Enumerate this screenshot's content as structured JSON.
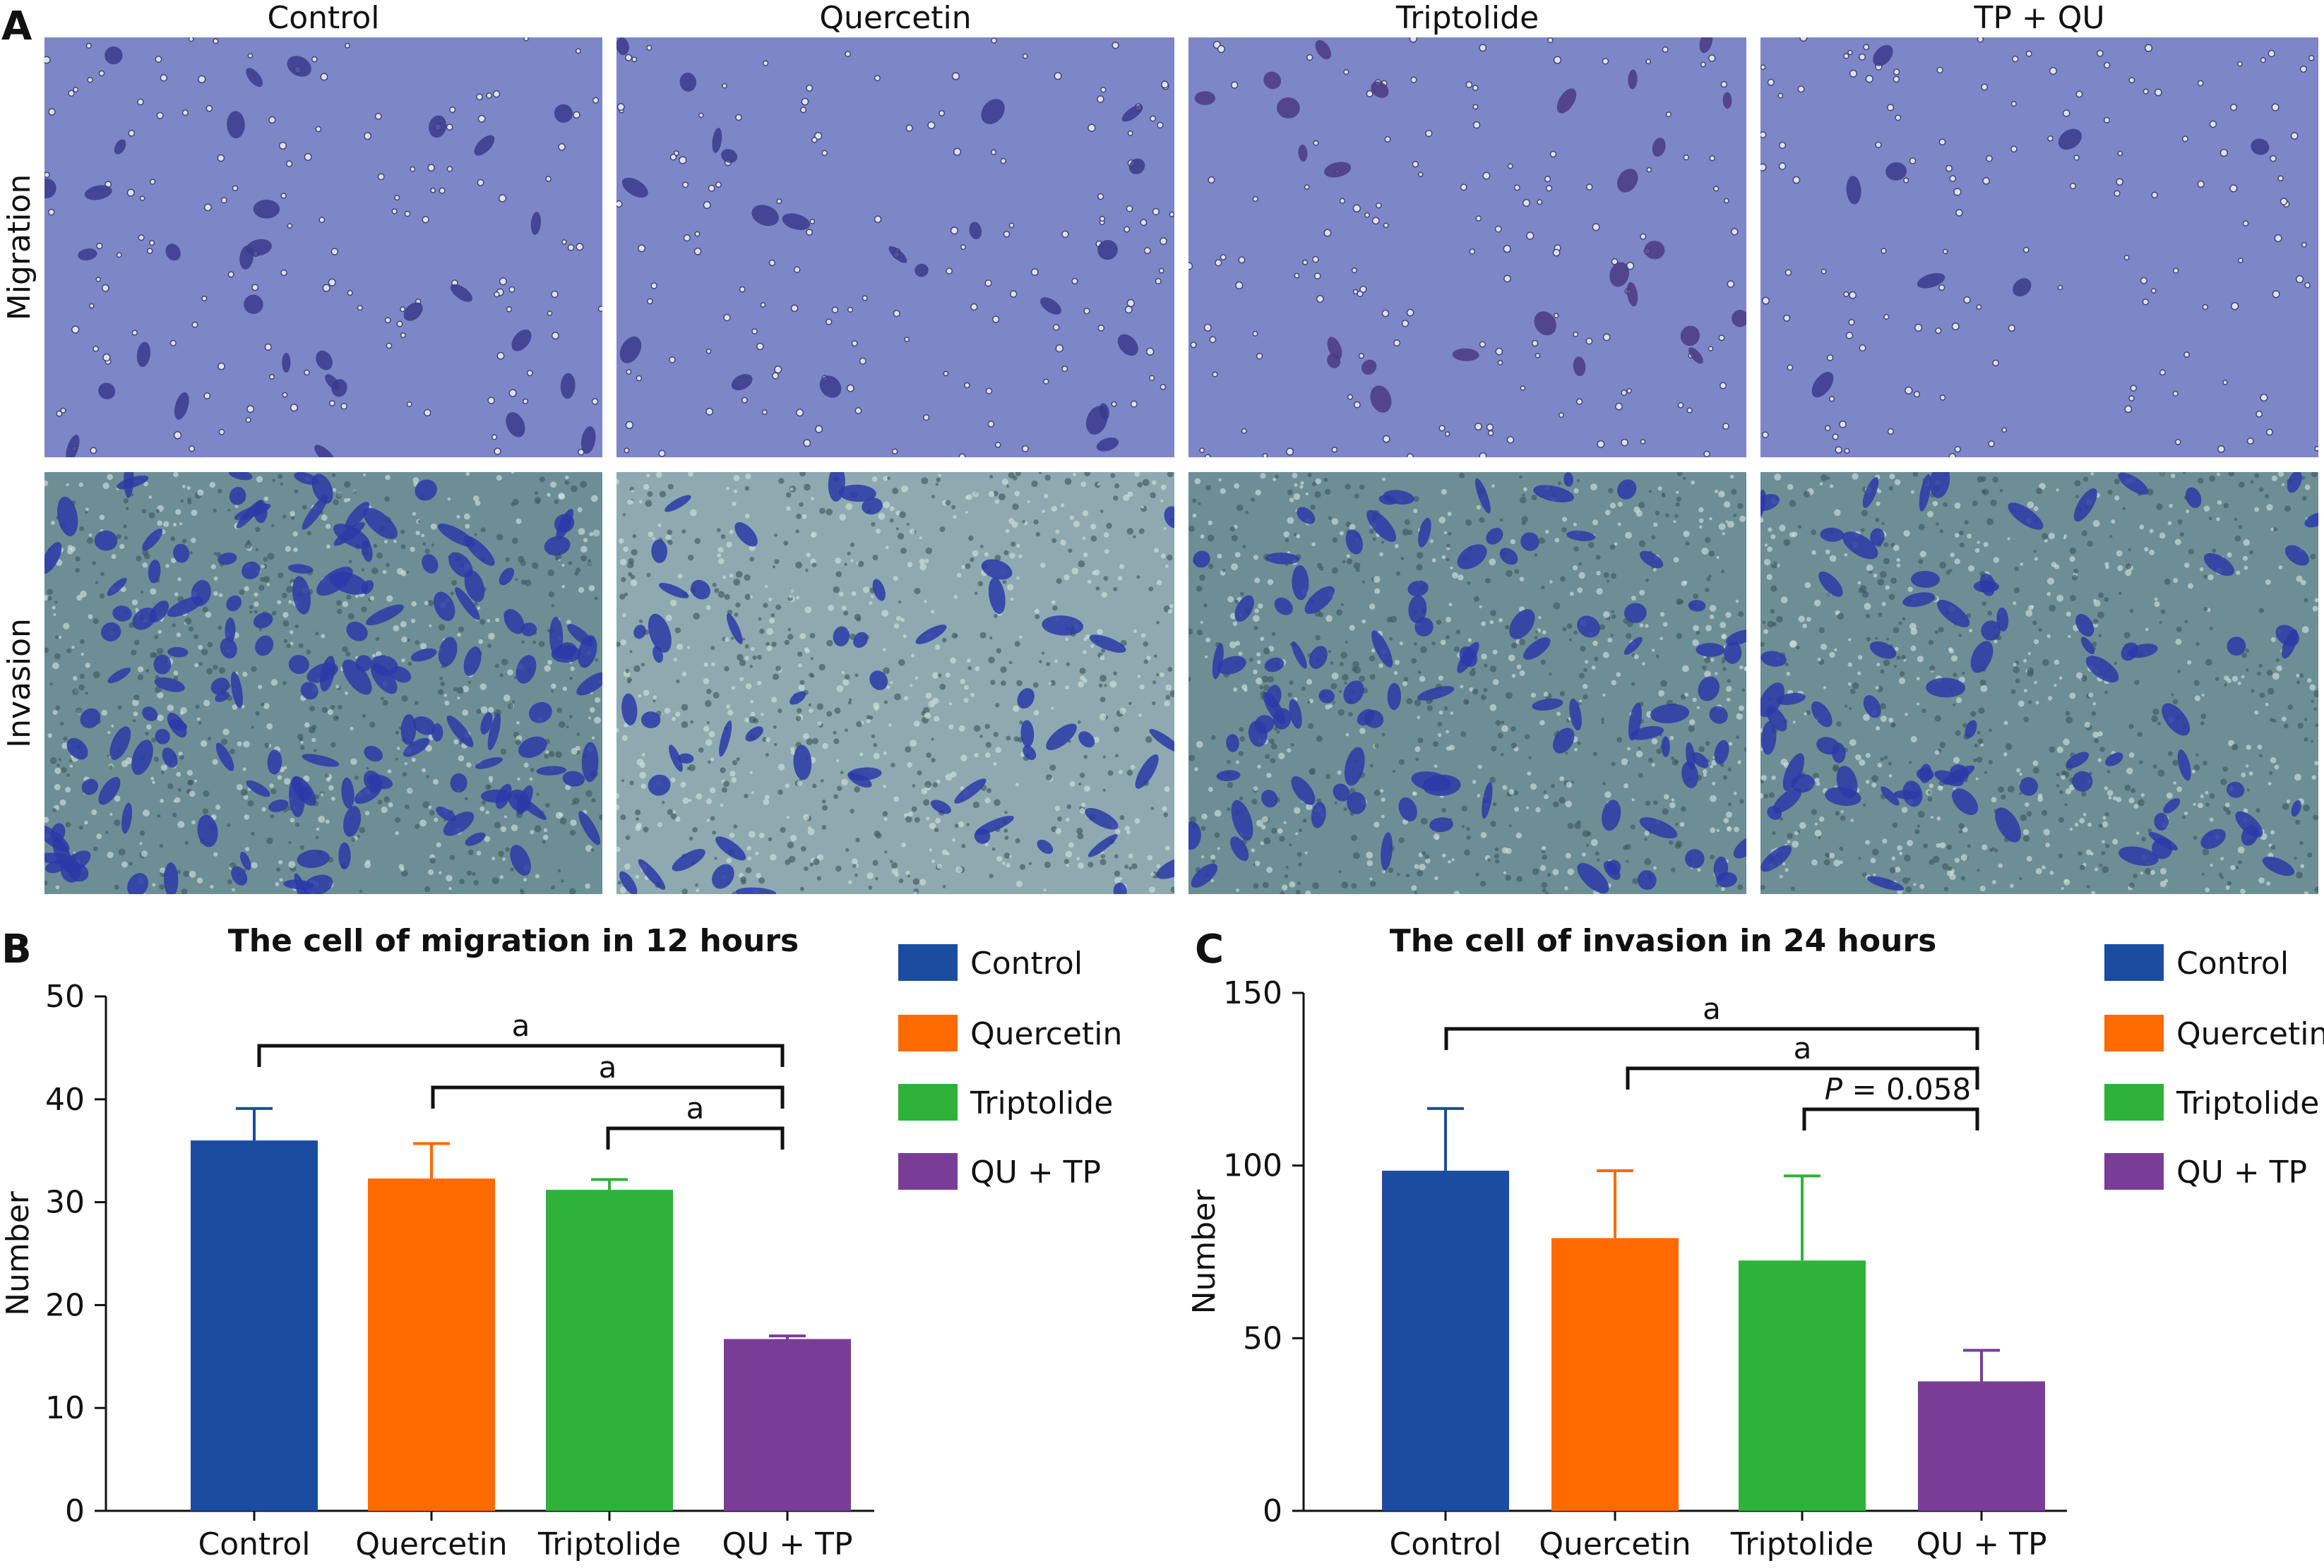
{
  "panel_a": {
    "letter": "A",
    "columns": [
      "Control",
      "Quercetin",
      "Triptolide",
      "TP + QU"
    ],
    "rows": [
      "Migration",
      "Invasion"
    ]
  },
  "colors": {
    "control": "#1a4da0",
    "quercetin": "#ff6a00",
    "triptolide": "#2fb23a",
    "combo": "#7a3d97",
    "migration_bg": "#7d86c6",
    "invasion_bg": "#6d8e95",
    "cell_migration": "#3b3a8c",
    "cell_invasion": "#2c3aa8"
  },
  "chart_data": [
    {
      "letter": "B",
      "type": "bar",
      "title": "The cell of migration in 12 hours",
      "ylabel": "Number",
      "xlabel": "",
      "ylim": [
        0,
        50
      ],
      "yticks": [
        0,
        10,
        20,
        30,
        40,
        50
      ],
      "categories": [
        "Control",
        "Quercetin",
        "Triptolide",
        "QU + TP"
      ],
      "values": [
        36,
        32.3,
        31.2,
        16.7
      ],
      "errors": [
        3.1,
        3.4,
        1.0,
        0.3
      ],
      "legend": [
        "Control",
        "Quercetin",
        "Triptolide",
        "QU + TP"
      ],
      "legend_position": "right",
      "grid": false,
      "significance": [
        {
          "from": 0,
          "to": 3,
          "label": "a"
        },
        {
          "from": 1,
          "to": 3,
          "label": "a"
        },
        {
          "from": 2,
          "to": 3,
          "label": "a"
        }
      ]
    },
    {
      "letter": "C",
      "type": "bar",
      "title": "The cell of invasion in 24 hours",
      "ylabel": "Number",
      "xlabel": "",
      "ylim": [
        0,
        150
      ],
      "yticks": [
        0,
        50,
        100,
        150
      ],
      "categories": [
        "Control",
        "Quercetin",
        "Triptolide",
        "QU + TP"
      ],
      "values": [
        98.5,
        79,
        72.5,
        37.5
      ],
      "errors": [
        18,
        19.5,
        24.5,
        9
      ],
      "legend": [
        "Control",
        "Quercetin",
        "Triptolide",
        "QU + TP"
      ],
      "legend_position": "right",
      "grid": false,
      "significance": [
        {
          "from": 0,
          "to": 3,
          "label": "a"
        },
        {
          "from": 1,
          "to": 3,
          "label": "a"
        },
        {
          "from": 2,
          "to": 3,
          "label": "P = 0.058"
        }
      ]
    }
  ]
}
